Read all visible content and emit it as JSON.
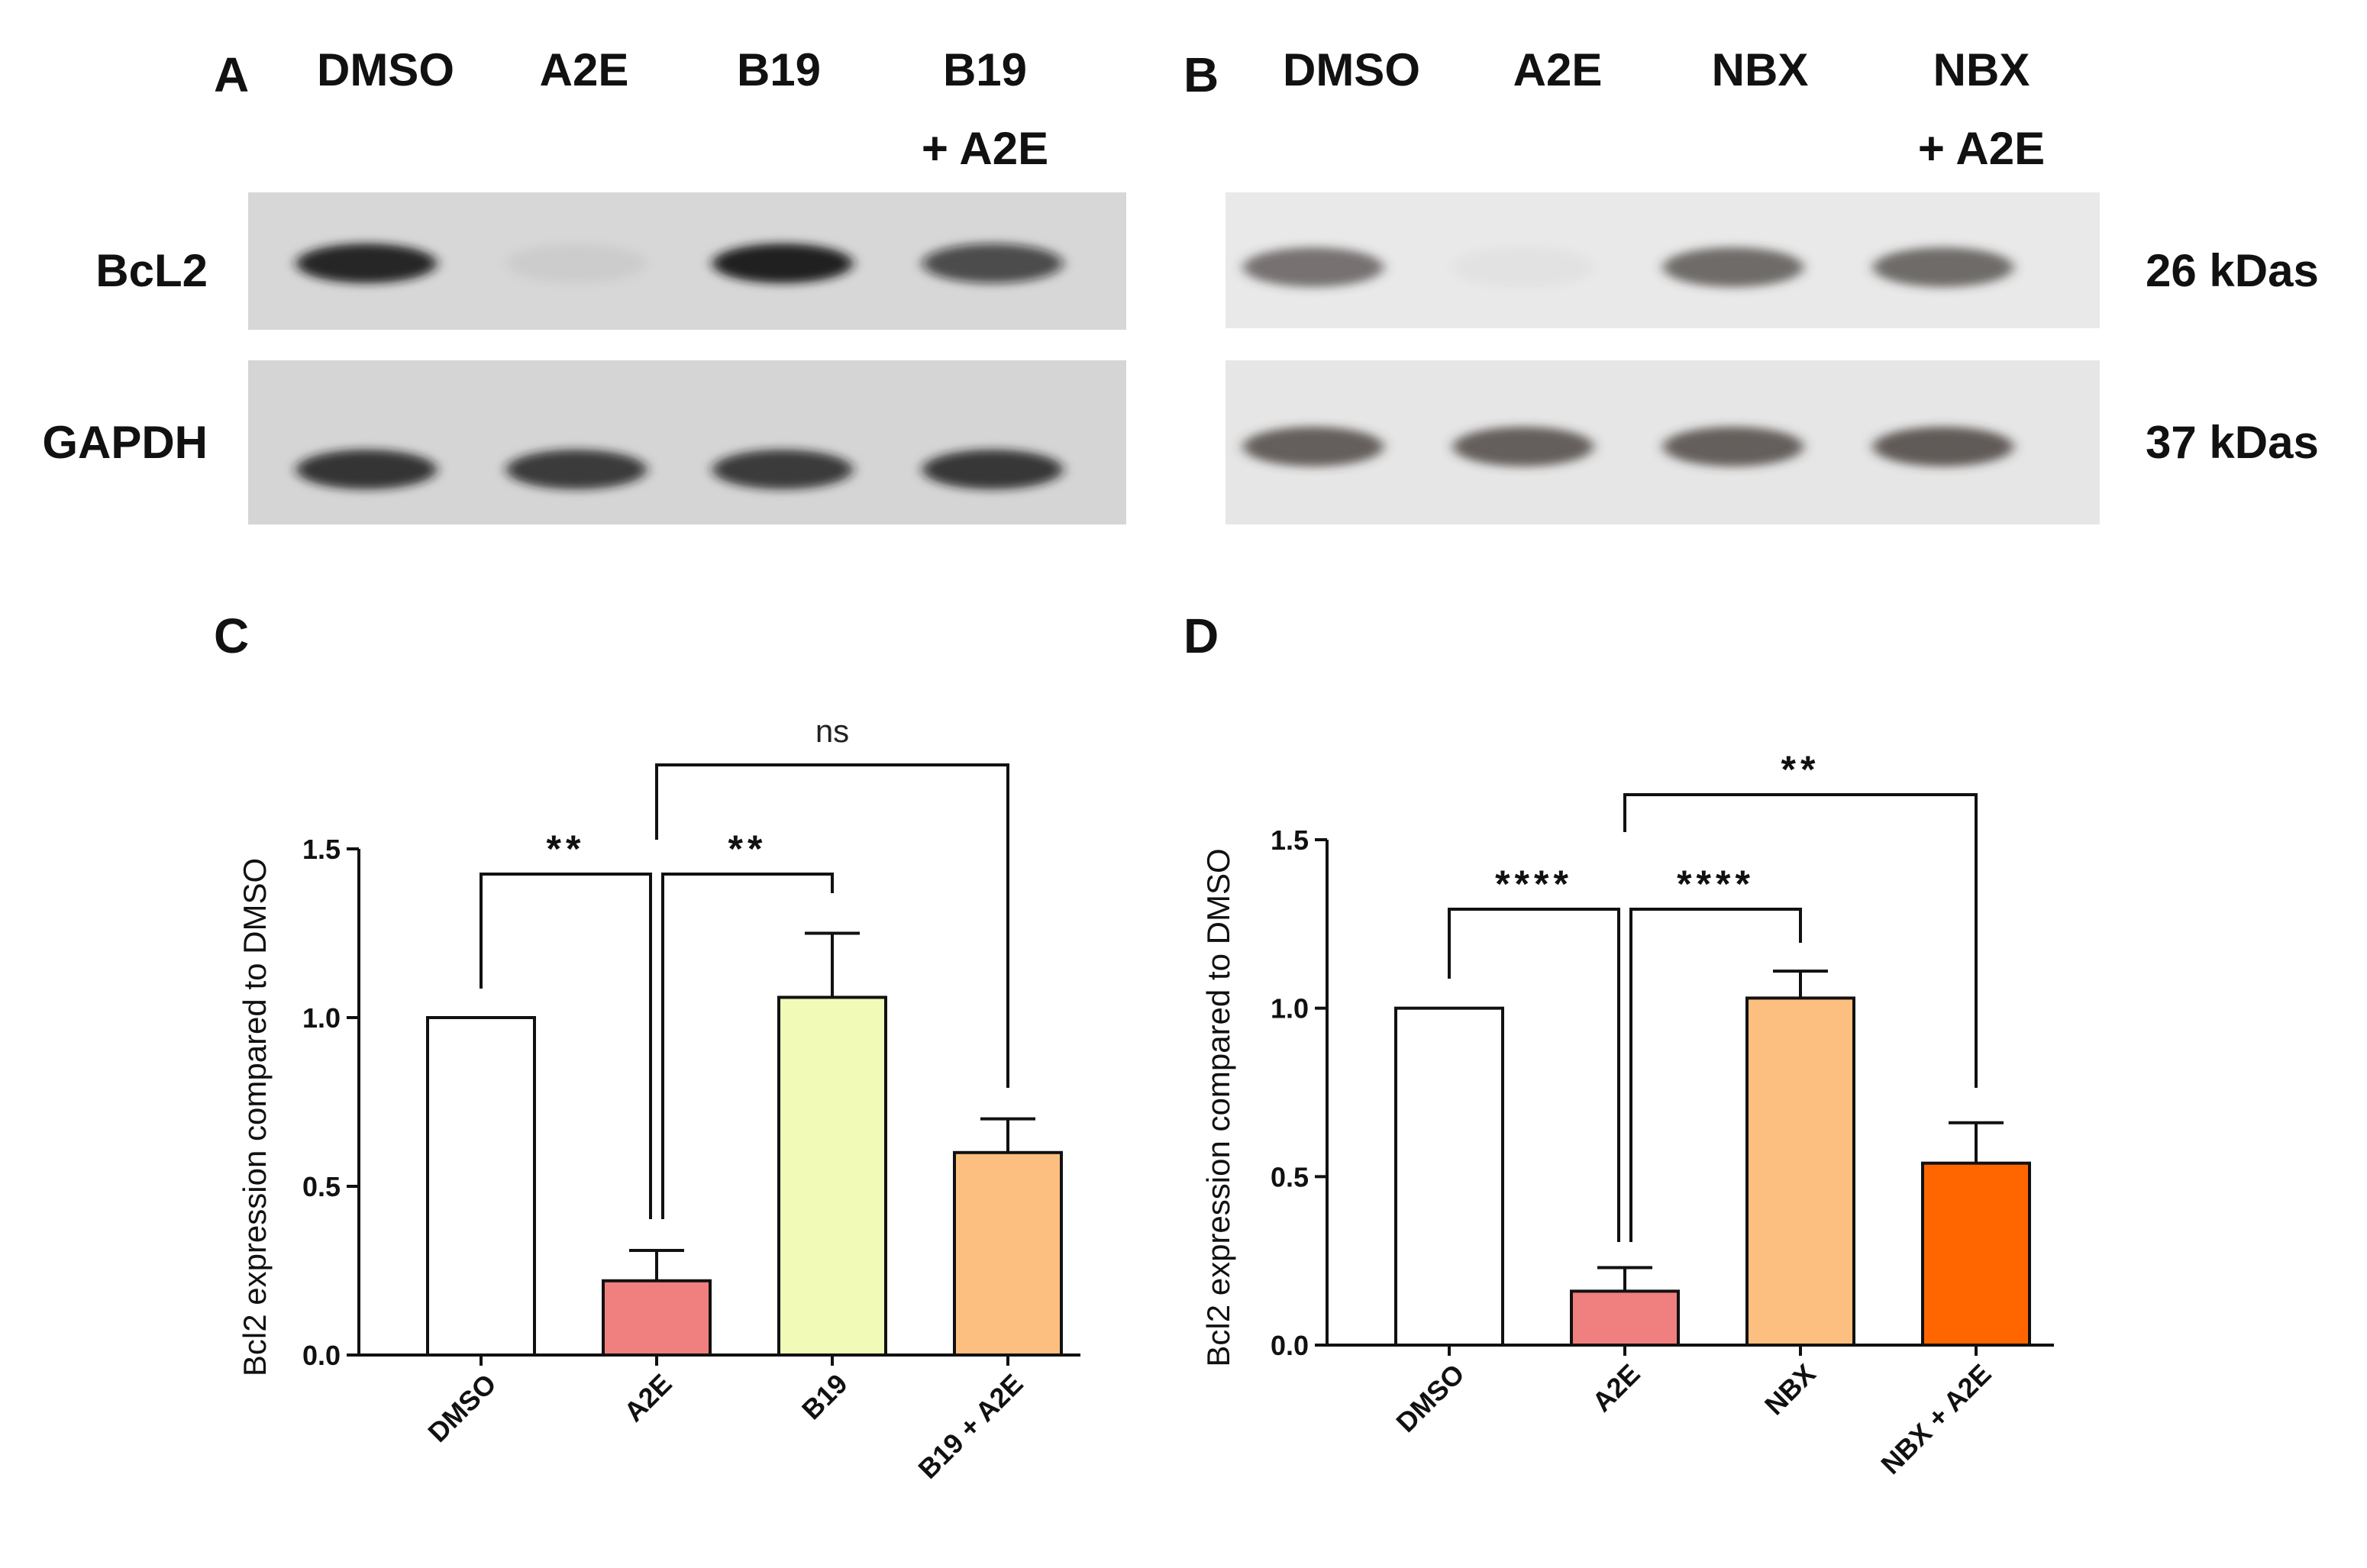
{
  "panels": {
    "a": {
      "letter": "A",
      "lanes": [
        "DMSO",
        "A2E",
        "B19",
        "B19",
        "+ A2E"
      ]
    },
    "b": {
      "letter": "B",
      "lanes": [
        "DMSO",
        "A2E",
        "NBX",
        "NBX",
        "+ A2E"
      ]
    },
    "c": {
      "letter": "C"
    },
    "d": {
      "letter": "D"
    }
  },
  "blot_rows": [
    "BcL2",
    "GAPDH"
  ],
  "blot_sizes": [
    "26 kDas",
    "37 kDas"
  ],
  "blot_bands": {
    "a": {
      "bcl2": [
        0.92,
        0.05,
        0.95,
        0.7
      ],
      "gapdh": [
        0.85,
        0.82,
        0.82,
        0.84
      ]
    },
    "b": {
      "bcl2": [
        0.68,
        0.03,
        0.72,
        0.72
      ],
      "gapdh": [
        0.78,
        0.78,
        0.78,
        0.8
      ]
    }
  },
  "chart_data": [
    {
      "type": "bar",
      "panel": "C",
      "categories": [
        "DMSO",
        "A2E",
        "B19",
        "B19 + A2E"
      ],
      "values": [
        1.0,
        0.22,
        1.06,
        0.6
      ],
      "errors": [
        0,
        0.09,
        0.19,
        0.1
      ],
      "colors": [
        "#ffffff",
        "#f07f7f",
        "#f2fab8",
        "#fdbf7f"
      ],
      "ylabel": "Bcl2 expression compared to DMSO",
      "ylim": [
        0,
        1.5
      ],
      "yticks": [
        "0.0",
        "0.5",
        "1.0",
        "1.5"
      ],
      "grid": false,
      "significance": [
        {
          "from": "DMSO",
          "to": "A2E",
          "label": "**"
        },
        {
          "from": "A2E",
          "to": "B19",
          "label": "**"
        },
        {
          "from": "A2E",
          "to": "B19 + A2E",
          "label": "ns"
        }
      ]
    },
    {
      "type": "bar",
      "panel": "D",
      "categories": [
        "DMSO",
        "A2E",
        "NBX",
        "NBX + A2E"
      ],
      "values": [
        1.0,
        0.16,
        1.03,
        0.54
      ],
      "errors": [
        0,
        0.07,
        0.08,
        0.12
      ],
      "colors": [
        "#ffffff",
        "#f07f7f",
        "#fdbf7f",
        "#ff6600"
      ],
      "ylabel": "Bcl2 expression compared to DMSO",
      "ylim": [
        0,
        1.5
      ],
      "yticks": [
        "0.0",
        "0.5",
        "1.0",
        "1.5"
      ],
      "grid": false,
      "significance": [
        {
          "from": "DMSO",
          "to": "A2E",
          "label": "****"
        },
        {
          "from": "A2E",
          "to": "NBX",
          "label": "****"
        },
        {
          "from": "A2E",
          "to": "NBX + A2E",
          "label": "**"
        }
      ]
    }
  ]
}
